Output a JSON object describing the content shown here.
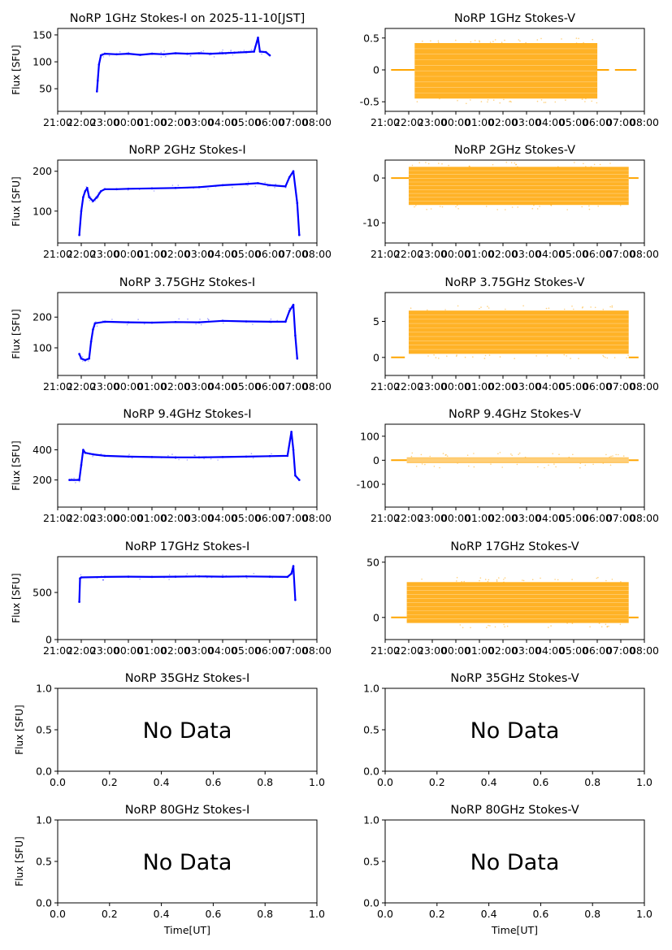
{
  "page": {
    "xlabel": "Time[UT]"
  },
  "colors": {
    "stokes_i": "#0000ff",
    "stokes_v": "#ffa500",
    "axis": "#000000",
    "background": "#ffffff"
  },
  "time_ticks": [
    "21:00",
    "22:00",
    "23:00",
    "00:00",
    "01:00",
    "02:00",
    "03:00",
    "04:00",
    "05:00",
    "06:00",
    "07:00",
    "08:00"
  ],
  "chart_data": [
    {
      "type": "scatter",
      "title": "NoRP 1GHz Stokes-I on 2025-11-10[JST]",
      "ylabel": "Flux [SFU]",
      "x_axis": "time_ut",
      "xlim": [
        "21:00",
        "08:00"
      ],
      "ylim": [
        8,
        162
      ],
      "yticks": [
        50,
        100,
        150
      ],
      "series": [
        {
          "color": "#0000ff",
          "points": [
            [
              "22:40",
              45
            ],
            [
              "22:42",
              65
            ],
            [
              "22:45",
              95
            ],
            [
              "22:50",
              112
            ],
            [
              "23:00",
              115
            ],
            [
              "23:30",
              114
            ],
            [
              "00:00",
              115
            ],
            [
              "00:30",
              113
            ],
            [
              "01:00",
              115
            ],
            [
              "01:30",
              114
            ],
            [
              "02:00",
              116
            ],
            [
              "02:30",
              115
            ],
            [
              "03:00",
              116
            ],
            [
              "03:30",
              115
            ],
            [
              "04:00",
              116
            ],
            [
              "04:30",
              117
            ],
            [
              "05:00",
              118
            ],
            [
              "05:20",
              119
            ],
            [
              "05:30",
              145
            ],
            [
              "05:35",
              119
            ],
            [
              "05:50",
              118
            ],
            [
              "06:00",
              112
            ]
          ]
        }
      ]
    },
    {
      "type": "scatter",
      "title": "NoRP 1GHz Stokes-V",
      "ylabel": "",
      "x_axis": "time_ut",
      "xlim": [
        "21:00",
        "08:00"
      ],
      "ylim": [
        -0.65,
        0.65
      ],
      "yticks": [
        -0.5,
        0.0,
        0.5
      ],
      "series": [
        {
          "color": "#ffa500",
          "band": {
            "from": "22:15",
            "to": "06:00",
            "ymin": -0.45,
            "ymax": 0.42
          },
          "zero_segments": [
            [
              "21:15",
              "22:15"
            ],
            [
              "06:00",
              "06:30"
            ],
            [
              "06:45",
              "07:40"
            ]
          ]
        }
      ]
    },
    {
      "type": "scatter",
      "title": "NoRP 2GHz Stokes-I",
      "ylabel": "Flux [SFU]",
      "x_axis": "time_ut",
      "xlim": [
        "21:00",
        "08:00"
      ],
      "ylim": [
        20,
        228
      ],
      "yticks": [
        100,
        200
      ],
      "series": [
        {
          "color": "#0000ff",
          "points": [
            [
              "21:55",
              40
            ],
            [
              "22:00",
              100
            ],
            [
              "22:05",
              135
            ],
            [
              "22:10",
              150
            ],
            [
              "22:15",
              158
            ],
            [
              "22:20",
              135
            ],
            [
              "22:30",
              125
            ],
            [
              "22:40",
              135
            ],
            [
              "22:50",
              150
            ],
            [
              "23:00",
              155
            ],
            [
              "23:30",
              155
            ],
            [
              "00:00",
              156
            ],
            [
              "01:00",
              157
            ],
            [
              "02:00",
              158
            ],
            [
              "03:00",
              160
            ],
            [
              "04:00",
              165
            ],
            [
              "05:00",
              168
            ],
            [
              "05:30",
              170
            ],
            [
              "06:00",
              165
            ],
            [
              "06:40",
              162
            ],
            [
              "06:50",
              185
            ],
            [
              "07:00",
              200
            ],
            [
              "07:10",
              120
            ],
            [
              "07:15",
              40
            ]
          ]
        }
      ]
    },
    {
      "type": "scatter",
      "title": "NoRP 2GHz Stokes-V",
      "ylabel": "",
      "x_axis": "time_ut",
      "xlim": [
        "21:00",
        "08:00"
      ],
      "ylim": [
        -14.5,
        4
      ],
      "yticks": [
        -10,
        0
      ],
      "series": [
        {
          "color": "#ffa500",
          "band": {
            "from": "22:00",
            "to": "07:20",
            "ymin": -6,
            "ymax": 2.5
          },
          "zero_segments": [
            [
              "21:15",
              "22:00"
            ],
            [
              "07:20",
              "07:45"
            ]
          ]
        }
      ]
    },
    {
      "type": "scatter",
      "title": "NoRP 3.75GHz Stokes-I",
      "ylabel": "Flux [SFU]",
      "x_axis": "time_ut",
      "xlim": [
        "21:00",
        "08:00"
      ],
      "ylim": [
        10,
        280
      ],
      "yticks": [
        100,
        200
      ],
      "series": [
        {
          "color": "#0000ff",
          "points": [
            [
              "21:55",
              80
            ],
            [
              "22:00",
              65
            ],
            [
              "22:10",
              60
            ],
            [
              "22:20",
              65
            ],
            [
              "22:25",
              120
            ],
            [
              "22:30",
              160
            ],
            [
              "22:35",
              180
            ],
            [
              "23:00",
              185
            ],
            [
              "00:00",
              183
            ],
            [
              "01:00",
              182
            ],
            [
              "02:00",
              184
            ],
            [
              "03:00",
              183
            ],
            [
              "04:00",
              188
            ],
            [
              "05:00",
              186
            ],
            [
              "06:00",
              185
            ],
            [
              "06:40",
              185
            ],
            [
              "06:50",
              220
            ],
            [
              "07:00",
              240
            ],
            [
              "07:05",
              140
            ],
            [
              "07:10",
              65
            ]
          ]
        }
      ]
    },
    {
      "type": "scatter",
      "title": "NoRP 3.75GHz Stokes-V",
      "ylabel": "",
      "x_axis": "time_ut",
      "xlim": [
        "21:00",
        "08:00"
      ],
      "ylim": [
        -2.5,
        9
      ],
      "yticks": [
        0,
        5
      ],
      "series": [
        {
          "color": "#ffa500",
          "band": {
            "from": "22:00",
            "to": "07:20",
            "ymin": 0.5,
            "ymax": 6.5
          },
          "zero_segments": [
            [
              "21:15",
              "21:50"
            ],
            [
              "07:20",
              "07:45"
            ]
          ]
        }
      ]
    },
    {
      "type": "scatter",
      "title": "NoRP 9.4GHz Stokes-I",
      "ylabel": "Flux [SFU]",
      "x_axis": "time_ut",
      "xlim": [
        "21:00",
        "08:00"
      ],
      "ylim": [
        20,
        570
      ],
      "yticks": [
        200,
        400
      ],
      "series": [
        {
          "color": "#0000ff",
          "points": [
            [
              "21:30",
              200
            ],
            [
              "21:55",
              200
            ],
            [
              "22:00",
              300
            ],
            [
              "22:05",
              400
            ],
            [
              "22:10",
              380
            ],
            [
              "22:30",
              370
            ],
            [
              "23:00",
              360
            ],
            [
              "00:00",
              355
            ],
            [
              "01:00",
              352
            ],
            [
              "02:00",
              350
            ],
            [
              "03:00",
              350
            ],
            [
              "04:00",
              352
            ],
            [
              "05:00",
              355
            ],
            [
              "06:00",
              358
            ],
            [
              "06:45",
              360
            ],
            [
              "06:55",
              520
            ],
            [
              "07:00",
              400
            ],
            [
              "07:05",
              230
            ],
            [
              "07:15",
              200
            ]
          ]
        }
      ]
    },
    {
      "type": "scatter",
      "title": "NoRP 9.4GHz Stokes-V",
      "ylabel": "",
      "x_axis": "time_ut",
      "xlim": [
        "21:00",
        "08:00"
      ],
      "ylim": [
        -195,
        150
      ],
      "yticks": [
        -100,
        0,
        100
      ],
      "series": [
        {
          "color": "#ffa500",
          "band": {
            "from": "21:55",
            "to": "07:20",
            "ymin": -12,
            "ymax": 12
          },
          "zero_segments": [
            [
              "21:15",
              "21:55"
            ],
            [
              "07:20",
              "07:45"
            ]
          ]
        }
      ]
    },
    {
      "type": "scatter",
      "title": "NoRP 17GHz Stokes-I",
      "ylabel": "Flux [SFU]",
      "x_axis": "time_ut",
      "xlim": [
        "21:00",
        "08:00"
      ],
      "ylim": [
        0,
        880
      ],
      "yticks": [
        0,
        500
      ],
      "series": [
        {
          "color": "#0000ff",
          "points": [
            [
              "21:55",
              400
            ],
            [
              "21:57",
              650
            ],
            [
              "22:00",
              660
            ],
            [
              "23:00",
              665
            ],
            [
              "00:00",
              668
            ],
            [
              "01:00",
              665
            ],
            [
              "02:00",
              668
            ],
            [
              "03:00",
              670
            ],
            [
              "04:00",
              668
            ],
            [
              "05:00",
              670
            ],
            [
              "06:00",
              668
            ],
            [
              "06:45",
              665
            ],
            [
              "06:55",
              700
            ],
            [
              "07:00",
              780
            ],
            [
              "07:05",
              420
            ]
          ]
        }
      ]
    },
    {
      "type": "scatter",
      "title": "NoRP 17GHz Stokes-V",
      "ylabel": "",
      "x_axis": "time_ut",
      "xlim": [
        "21:00",
        "08:00"
      ],
      "ylim": [
        -20,
        55
      ],
      "yticks": [
        0,
        50
      ],
      "series": [
        {
          "color": "#ffa500",
          "band": {
            "from": "21:55",
            "to": "07:20",
            "ymin": -5,
            "ymax": 32
          },
          "zero_segments": [
            [
              "21:15",
              "21:55"
            ],
            [
              "07:20",
              "07:45"
            ]
          ]
        }
      ]
    },
    {
      "type": "table",
      "title": "NoRP 35GHz Stokes-I",
      "ylabel": "Flux [SFU]",
      "xlim": [
        0,
        1
      ],
      "ylim": [
        0,
        1
      ],
      "xticks": [
        "0.0",
        "0.2",
        "0.4",
        "0.6",
        "0.8",
        "1.0"
      ],
      "yticks": [
        "0.0",
        "0.5",
        "1.0"
      ],
      "annotation": "No Data"
    },
    {
      "type": "table",
      "title": "NoRP 35GHz Stokes-V",
      "ylabel": "",
      "xlim": [
        0,
        1
      ],
      "ylim": [
        0,
        1
      ],
      "xticks": [
        "0.0",
        "0.2",
        "0.4",
        "0.6",
        "0.8",
        "1.0"
      ],
      "yticks": [
        "0.0",
        "0.5",
        "1.0"
      ],
      "annotation": "No Data"
    },
    {
      "type": "table",
      "title": "NoRP 80GHz Stokes-I",
      "ylabel": "Flux [SFU]",
      "xlim": [
        0,
        1
      ],
      "ylim": [
        0,
        1
      ],
      "xticks": [
        "0.0",
        "0.2",
        "0.4",
        "0.6",
        "0.8",
        "1.0"
      ],
      "yticks": [
        "0.0",
        "0.5",
        "1.0"
      ],
      "annotation": "No Data"
    },
    {
      "type": "table",
      "title": "NoRP 80GHz Stokes-V",
      "ylabel": "",
      "xlim": [
        0,
        1
      ],
      "ylim": [
        0,
        1
      ],
      "xticks": [
        "0.0",
        "0.2",
        "0.4",
        "0.6",
        "0.8",
        "1.0"
      ],
      "yticks": [
        "0.0",
        "0.5",
        "1.0"
      ],
      "annotation": "No Data"
    }
  ]
}
